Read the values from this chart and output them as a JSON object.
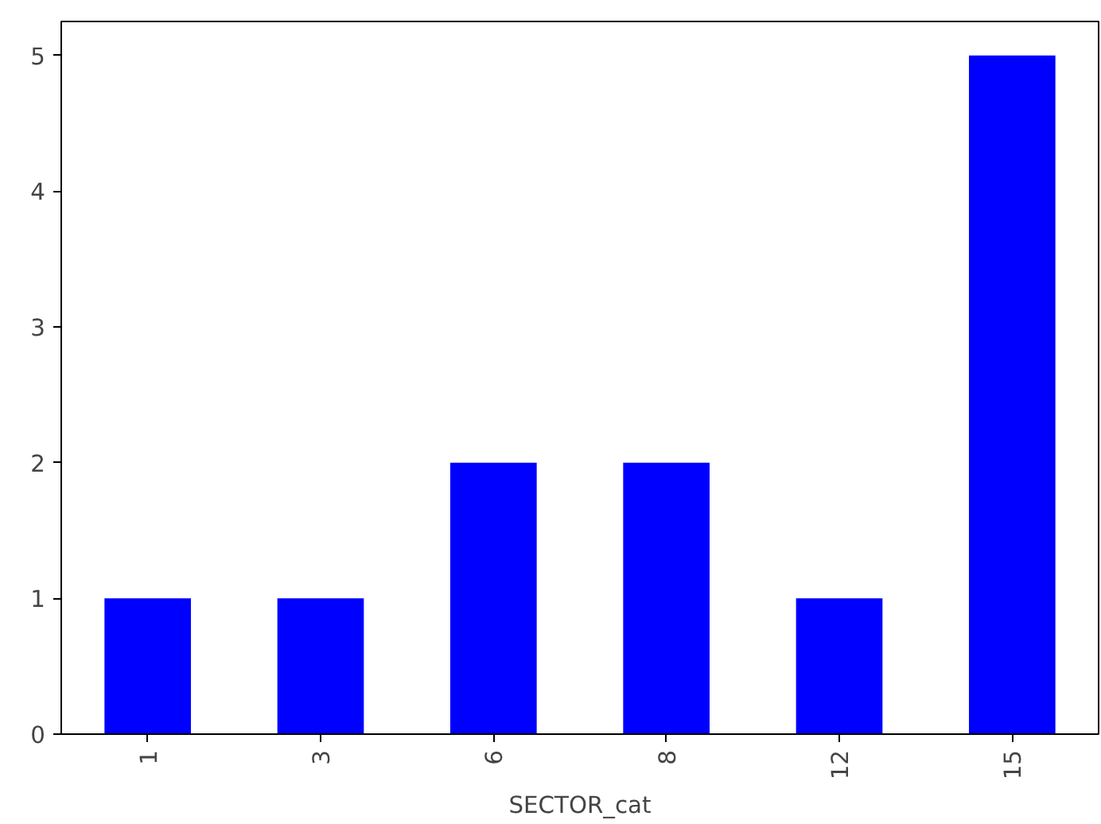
{
  "chart_data": {
    "type": "bar",
    "xlabel": "SECTOR_cat",
    "categories": [
      "1",
      "3",
      "6",
      "8",
      "12",
      "15"
    ],
    "values": [
      1,
      1,
      2,
      2,
      1,
      5
    ],
    "color": "#0000ff",
    "ylim": [
      0,
      5.25
    ],
    "yticks": [
      0,
      1,
      2,
      3,
      4,
      5
    ],
    "grid": false
  }
}
